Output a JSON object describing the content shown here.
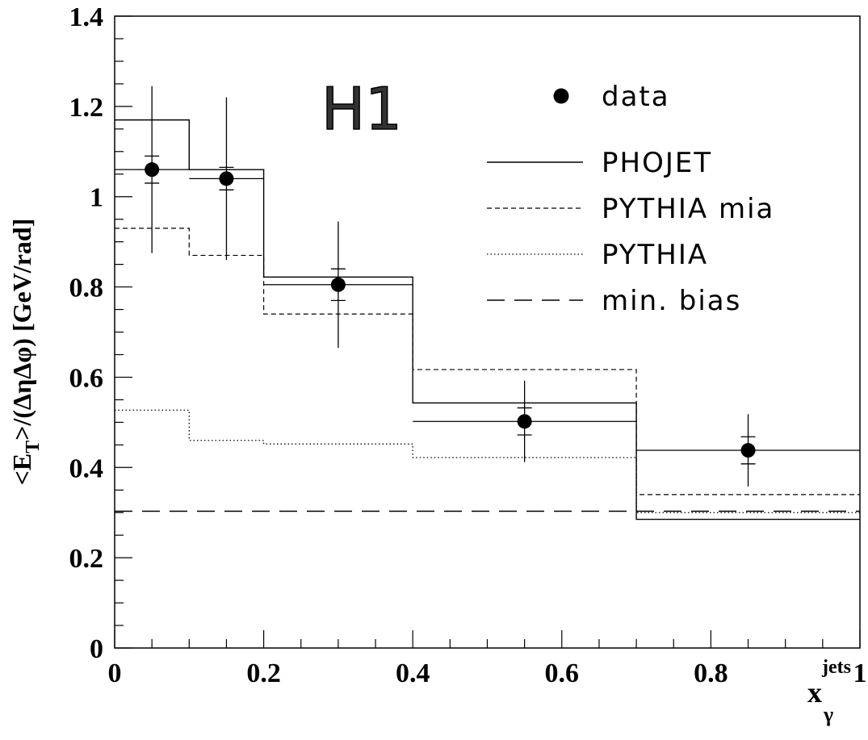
{
  "chart_data": {
    "type": "line",
    "plot_style": "histogram-steps-with-data-points",
    "logo_label": "H1",
    "ylabel_parts": [
      "<E",
      "T",
      ">/(ΔηΔφ) [GeV/rad]"
    ],
    "xlabel_parts": [
      "x",
      "γ",
      "jets"
    ],
    "xlim": [
      0,
      1
    ],
    "ylim": [
      0,
      1.4
    ],
    "x_ticks": [
      "0",
      "0.2",
      "0.4",
      "0.6",
      "0.8",
      "1"
    ],
    "y_ticks": [
      "0",
      "0.2",
      "0.4",
      "0.6",
      "0.8",
      "1",
      "1.2",
      "1.4"
    ],
    "x_tick_values": [
      0,
      0.2,
      0.4,
      0.6,
      0.8,
      1.0
    ],
    "y_tick_values": [
      0,
      0.2,
      0.4,
      0.6,
      0.8,
      1.0,
      1.2,
      1.4
    ],
    "bin_edges": [
      0,
      0.1,
      0.2,
      0.4,
      0.7,
      1.0
    ],
    "legend_position": "top-right",
    "data_points": {
      "name": "data",
      "x": [
        0.05,
        0.15,
        0.3,
        0.55,
        0.85
      ],
      "y": [
        1.06,
        1.04,
        0.805,
        0.502,
        0.438
      ],
      "x_err_low": [
        0.05,
        0.05,
        0.1,
        0.15,
        0.15
      ],
      "x_err_high": [
        0.05,
        0.05,
        0.1,
        0.15,
        0.15
      ],
      "stat_err": [
        0.03,
        0.025,
        0.035,
        0.03,
        0.03
      ],
      "total_err": [
        0.185,
        0.18,
        0.14,
        0.09,
        0.08
      ]
    },
    "series": [
      {
        "name": "PHOJET",
        "style": "solid",
        "values": [
          1.17,
          1.06,
          0.822,
          0.543,
          0.285
        ]
      },
      {
        "name": "PYTHIA mia",
        "style": "dashed",
        "values": [
          0.93,
          0.87,
          0.74,
          0.617,
          0.34
        ]
      },
      {
        "name": "PYTHIA",
        "style": "dotted",
        "values": [
          0.527,
          0.46,
          0.452,
          0.422,
          0.3
        ]
      },
      {
        "name": "min. bias",
        "style": "longdash",
        "values": [
          0.303,
          0.303,
          0.303,
          0.303,
          0.303
        ]
      }
    ]
  }
}
